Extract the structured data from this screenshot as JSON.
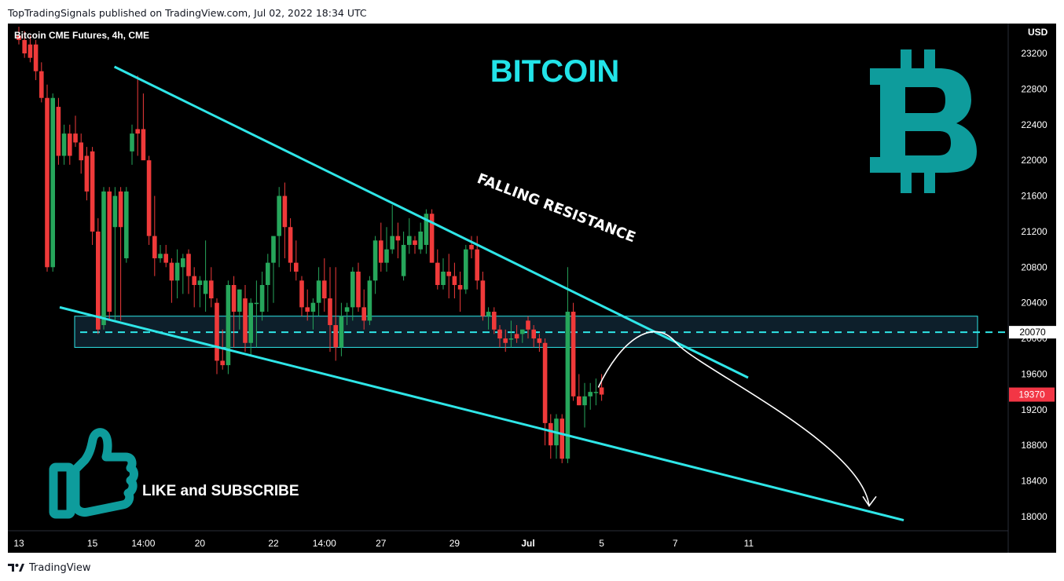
{
  "header": {
    "published_line": "TopTradingSignals published on TradingView.com, Jul 02, 2022 18:34 UTC"
  },
  "footer": {
    "brand": "TradingView",
    "logo_icon": "tradingview-logo-icon"
  },
  "colors": {
    "background": "#000000",
    "up_candle": "#26a65b",
    "down_candle": "#ef3a3a",
    "trendline": "#2fe6e8",
    "title": "#22e3e8",
    "bitcoin_logo": "#0e9c9c",
    "thumb_icon": "#0e9c9c",
    "zone_fill": "#0d1f2b",
    "price_tag_red": "#f23645"
  },
  "chart_data": {
    "type": "candlestick",
    "symbol_label": "Bitcoin CME Futures, 4h, CME",
    "title": "BITCOIN",
    "currency": "USD",
    "ylim": [
      17800,
      23400
    ],
    "y_ticks": [
      23200,
      22800,
      22400,
      22000,
      21600,
      21200,
      20800,
      20400,
      20000,
      19600,
      19200,
      18800,
      18400,
      18000
    ],
    "x_ticks": [
      {
        "label": "13",
        "i": 0
      },
      {
        "label": "15",
        "i": 13
      },
      {
        "label": "14:00",
        "i": 22
      },
      {
        "label": "20",
        "i": 32
      },
      {
        "label": "22",
        "i": 45
      },
      {
        "label": "14:00",
        "i": 54
      },
      {
        "label": "27",
        "i": 64
      },
      {
        "label": "29",
        "i": 77
      },
      {
        "label": "Jul",
        "i": 90,
        "bold": true
      },
      {
        "label": "5",
        "i": 103
      },
      {
        "label": "7",
        "i": 116
      },
      {
        "label": "11",
        "i": 129
      }
    ],
    "candles": [
      [
        23400,
        23500,
        23300,
        23350
      ],
      [
        23350,
        23450,
        23150,
        23200
      ],
      [
        23300,
        23400,
        23100,
        23150
      ],
      [
        23300,
        23350,
        22900,
        23000
      ],
      [
        23000,
        23100,
        22650,
        22700
      ],
      [
        22700,
        22850,
        20750,
        20800
      ],
      [
        20800,
        22750,
        20750,
        22700
      ],
      [
        22600,
        22700,
        21950,
        22050
      ],
      [
        22050,
        22400,
        21950,
        22300
      ],
      [
        22300,
        22400,
        21950,
        22050
      ],
      [
        22300,
        22500,
        22150,
        22200
      ],
      [
        22200,
        22300,
        21850,
        22000
      ],
      [
        22050,
        22150,
        21550,
        21650
      ],
      [
        22100,
        22150,
        21050,
        21200
      ],
      [
        21200,
        21350,
        20050,
        20100
      ],
      [
        20150,
        21700,
        20100,
        21650
      ],
      [
        21650,
        21700,
        20200,
        20300
      ],
      [
        21250,
        21700,
        20200,
        21600
      ],
      [
        21650,
        21700,
        20200,
        21250
      ],
      [
        20900,
        21700,
        20850,
        21650
      ],
      [
        22100,
        22400,
        21950,
        22300
      ],
      [
        22350,
        22950,
        22050,
        22300
      ],
      [
        22350,
        22750,
        22050,
        22000
      ],
      [
        22000,
        22050,
        21050,
        21150
      ],
      [
        21150,
        21600,
        20700,
        20900
      ],
      [
        20900,
        21050,
        20850,
        20950
      ],
      [
        20950,
        21050,
        20800,
        20850
      ],
      [
        20850,
        20900,
        20400,
        20650
      ],
      [
        20650,
        21000,
        20450,
        20850
      ],
      [
        20800,
        20950,
        20500,
        20900
      ],
      [
        20950,
        21000,
        20500,
        20700
      ],
      [
        20700,
        20800,
        20350,
        20600
      ],
      [
        20600,
        20700,
        20350,
        20650
      ],
      [
        20500,
        21100,
        20300,
        20650
      ],
      [
        20650,
        20800,
        20350,
        20450
      ],
      [
        20400,
        20450,
        19600,
        19750
      ],
      [
        19750,
        20100,
        19650,
        19700
      ],
      [
        19700,
        20650,
        19600,
        20600
      ],
      [
        20600,
        20700,
        19900,
        20300
      ],
      [
        20300,
        20550,
        20100,
        20550
      ],
      [
        20450,
        20600,
        19850,
        19950
      ],
      [
        19950,
        20450,
        19800,
        20400
      ],
      [
        20400,
        20650,
        19900,
        20400
      ],
      [
        20300,
        20750,
        20200,
        20600
      ],
      [
        20600,
        20950,
        20300,
        20850
      ],
      [
        20850,
        21100,
        20400,
        21150
      ],
      [
        21150,
        21700,
        20800,
        21600
      ],
      [
        21600,
        21750,
        20900,
        21250
      ],
      [
        21250,
        21350,
        20750,
        20850
      ],
      [
        20850,
        21100,
        20650,
        20750
      ],
      [
        20650,
        20700,
        20250,
        20350
      ],
      [
        20350,
        20550,
        20200,
        20300
      ],
      [
        20300,
        20450,
        20100,
        20400
      ],
      [
        20400,
        20800,
        20250,
        20650
      ],
      [
        20650,
        20900,
        20300,
        20450
      ],
      [
        20450,
        20800,
        19850,
        20150
      ],
      [
        20150,
        20800,
        19750,
        19900
      ],
      [
        19900,
        20400,
        19800,
        20250
      ],
      [
        20300,
        20400,
        20150,
        20350
      ],
      [
        20350,
        20800,
        20200,
        20750
      ],
      [
        20750,
        20850,
        20300,
        20350
      ],
      [
        20350,
        20550,
        20100,
        20200
      ],
      [
        20200,
        20700,
        20150,
        20650
      ],
      [
        20650,
        21150,
        20500,
        21100
      ],
      [
        21100,
        21300,
        20750,
        20850
      ],
      [
        20850,
        21250,
        20750,
        21000
      ],
      [
        21000,
        21500,
        20950,
        21150
      ],
      [
        21150,
        21300,
        20900,
        21100
      ],
      [
        20700,
        21200,
        20650,
        21050
      ],
      [
        21050,
        21350,
        20950,
        21150
      ],
      [
        21100,
        21150,
        20950,
        21050
      ],
      [
        21000,
        21300,
        20950,
        21200
      ],
      [
        21050,
        21450,
        20950,
        21400
      ],
      [
        21400,
        21450,
        20850,
        20850
      ],
      [
        20850,
        21000,
        20550,
        20600
      ],
      [
        20600,
        20900,
        20550,
        20750
      ],
      [
        20750,
        20950,
        20450,
        20700
      ],
      [
        20700,
        20850,
        20450,
        20600
      ],
      [
        20600,
        20750,
        20300,
        20550
      ],
      [
        20550,
        21050,
        20500,
        21000
      ],
      [
        21050,
        21150,
        20900,
        21000
      ],
      [
        21000,
        21150,
        20550,
        20650
      ],
      [
        20650,
        20750,
        20200,
        20250
      ],
      [
        20250,
        20350,
        20100,
        20300
      ],
      [
        20300,
        20350,
        20050,
        20100
      ],
      [
        20100,
        20150,
        19900,
        20000
      ],
      [
        20000,
        20100,
        19850,
        19950
      ],
      [
        20000,
        20200,
        19900,
        20000
      ],
      [
        20050,
        20150,
        19950,
        20000
      ],
      [
        20050,
        20100,
        19950,
        20100
      ],
      [
        20200,
        20250,
        20000,
        20100
      ],
      [
        20100,
        20150,
        19900,
        20000
      ],
      [
        20000,
        20050,
        19850,
        19950
      ],
      [
        19950,
        20000,
        18800,
        19050
      ],
      [
        19050,
        19150,
        18650,
        18800
      ],
      [
        18800,
        19150,
        18650,
        19100
      ],
      [
        19100,
        19150,
        18600,
        18650
      ],
      [
        18650,
        20800,
        18600,
        20300
      ],
      [
        20300,
        20400,
        19300,
        19350
      ],
      [
        19350,
        19600,
        19250,
        19250
      ],
      [
        19250,
        19500,
        19000,
        19350
      ],
      [
        19350,
        19500,
        19200,
        19400
      ],
      [
        19400,
        19550,
        19250,
        19400
      ],
      [
        19450,
        19600,
        19300,
        19370
      ]
    ],
    "annotations": {
      "falling_resistance_label": "FALLING RESISTANCE",
      "support_zone": {
        "low": 19900,
        "high": 20250,
        "midline": 20070
      },
      "last_price_tag": 19370,
      "level_tag": 20070,
      "resistance_line": {
        "from": {
          "i": 13,
          "price": 23050
        },
        "to": {
          "i": 125,
          "price": 19560
        }
      },
      "support_line": {
        "from": {
          "i": 5,
          "price": 20350
        },
        "to": {
          "i": 120,
          "price": 17960
        }
      },
      "projection_arrow": {
        "start": {
          "i": 102,
          "price": 19450
        },
        "peak": {
          "i": 109,
          "price": 20000
        },
        "end": {
          "i": 121,
          "price": 18050
        }
      }
    }
  },
  "overlays": {
    "cta_text": "LIKE and SUBSCRIBE",
    "bitcoin_icon": "bitcoin-logo-icon",
    "thumb_icon": "thumbs-up-icon"
  }
}
